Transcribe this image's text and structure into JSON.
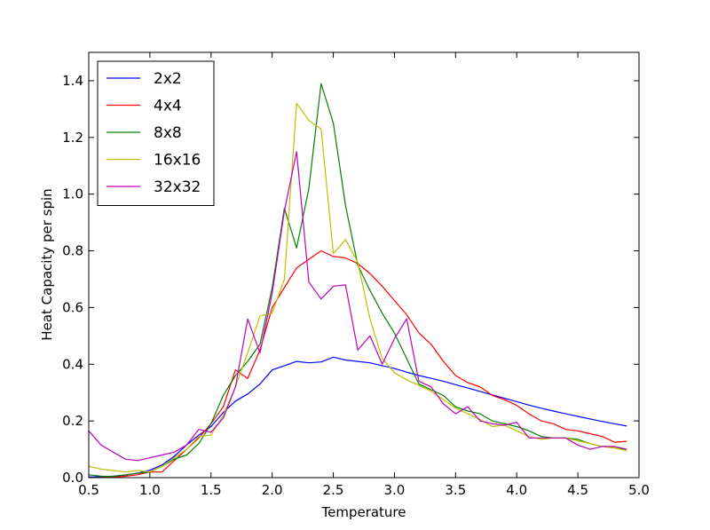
{
  "chart_data": {
    "type": "line",
    "title": "",
    "xlabel": "Temperature",
    "ylabel": "Heat Capacity per spin",
    "xlim": [
      0.5,
      5.0
    ],
    "ylim": [
      0.0,
      1.5
    ],
    "xticks": [
      0.5,
      1.0,
      1.5,
      2.0,
      2.5,
      3.0,
      3.5,
      4.0,
      4.5,
      5.0
    ],
    "xtick_labels": [
      "0.5",
      "1.0",
      "1.5",
      "2.0",
      "2.5",
      "3.0",
      "3.5",
      "4.0",
      "4.5",
      "5.0"
    ],
    "yticks": [
      0.0,
      0.2,
      0.4,
      0.6,
      0.8,
      1.0,
      1.2,
      1.4
    ],
    "ytick_labels": [
      "0.0",
      "0.2",
      "0.4",
      "0.6",
      "0.8",
      "1.0",
      "1.2",
      "1.4"
    ],
    "grid": false,
    "legend_position": "top-left",
    "x": [
      0.5,
      0.6,
      0.7,
      0.8,
      0.9,
      1.0,
      1.1,
      1.2,
      1.3,
      1.4,
      1.5,
      1.6,
      1.7,
      1.8,
      1.9,
      2.0,
      2.1,
      2.2,
      2.3,
      2.4,
      2.5,
      2.6,
      2.7,
      2.8,
      2.9,
      3.0,
      3.1,
      3.2,
      3.3,
      3.4,
      3.5,
      3.6,
      3.7,
      3.8,
      3.9,
      4.0,
      4.1,
      4.2,
      4.3,
      4.4,
      4.5,
      4.6,
      4.7,
      4.8,
      4.9
    ],
    "series": [
      {
        "name": "2x2",
        "color": "#0000ff",
        "values": [
          0.002,
          0.003,
          0.005,
          0.009,
          0.016,
          0.026,
          0.045,
          0.075,
          0.115,
          0.15,
          0.18,
          0.23,
          0.27,
          0.295,
          0.33,
          0.38,
          0.395,
          0.41,
          0.405,
          0.408,
          0.425,
          0.415,
          0.41,
          0.405,
          0.395,
          0.385,
          0.372,
          0.36,
          0.35,
          0.34,
          0.328,
          0.316,
          0.304,
          0.292,
          0.28,
          0.268,
          0.256,
          0.245,
          0.235,
          0.225,
          0.216,
          0.207,
          0.198,
          0.19,
          0.182
        ]
      },
      {
        "name": "4x4",
        "color": "#ff0000",
        "values": [
          0.0,
          0.0,
          0.002,
          0.005,
          0.01,
          0.02,
          0.02,
          0.06,
          0.1,
          0.14,
          0.19,
          0.25,
          0.38,
          0.35,
          0.45,
          0.6,
          0.67,
          0.74,
          0.77,
          0.8,
          0.78,
          0.775,
          0.755,
          0.72,
          0.675,
          0.625,
          0.575,
          0.51,
          0.47,
          0.41,
          0.36,
          0.335,
          0.32,
          0.29,
          0.275,
          0.255,
          0.225,
          0.2,
          0.19,
          0.17,
          0.165,
          0.155,
          0.145,
          0.125,
          0.128
        ]
      },
      {
        "name": "8x8",
        "color": "#008000",
        "values": [
          0.01,
          0.005,
          0.004,
          0.01,
          0.015,
          0.02,
          0.04,
          0.065,
          0.08,
          0.12,
          0.19,
          0.29,
          0.36,
          0.41,
          0.47,
          0.67,
          0.95,
          0.81,
          1.02,
          1.39,
          1.25,
          0.96,
          0.75,
          0.66,
          0.58,
          0.51,
          0.42,
          0.33,
          0.31,
          0.29,
          0.25,
          0.235,
          0.225,
          0.2,
          0.19,
          0.18,
          0.165,
          0.145,
          0.14,
          0.14,
          0.135,
          0.12,
          0.11,
          0.105,
          0.1
        ]
      },
      {
        "name": "16x16",
        "color": "#bfbf00",
        "values": [
          0.04,
          0.03,
          0.025,
          0.02,
          0.025,
          0.02,
          0.04,
          0.07,
          0.1,
          0.145,
          0.15,
          0.22,
          0.32,
          0.44,
          0.57,
          0.58,
          0.7,
          1.32,
          1.26,
          1.23,
          0.79,
          0.84,
          0.76,
          0.56,
          0.42,
          0.37,
          0.345,
          0.325,
          0.305,
          0.275,
          0.245,
          0.225,
          0.205,
          0.18,
          0.185,
          0.165,
          0.145,
          0.135,
          0.14,
          0.14,
          0.13,
          0.12,
          0.11,
          0.105,
          0.095
        ]
      },
      {
        "name": "32x32",
        "color": "#bf00bf",
        "values": [
          0.165,
          0.115,
          0.09,
          0.065,
          0.06,
          0.07,
          0.08,
          0.09,
          0.115,
          0.17,
          0.16,
          0.21,
          0.32,
          0.56,
          0.44,
          0.65,
          0.94,
          1.15,
          0.69,
          0.63,
          0.675,
          0.68,
          0.45,
          0.5,
          0.4,
          0.49,
          0.56,
          0.34,
          0.32,
          0.26,
          0.225,
          0.25,
          0.2,
          0.19,
          0.185,
          0.195,
          0.14,
          0.14,
          0.14,
          0.14,
          0.115,
          0.1,
          0.11,
          0.11,
          0.1
        ]
      }
    ]
  }
}
